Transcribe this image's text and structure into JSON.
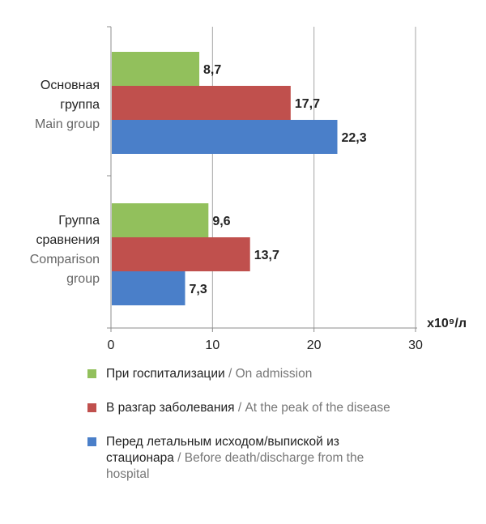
{
  "chart_data": {
    "type": "bar",
    "orientation": "horizontal",
    "categories": [
      {
        "label_ru": "Основная группа",
        "label_ru_lines": [
          "Основная",
          "группа"
        ],
        "label_en": "Main group",
        "label_en_lines": [
          "Main group"
        ]
      },
      {
        "label_ru": "Группа сравнения",
        "label_ru_lines": [
          "Группа",
          "сравнения"
        ],
        "label_en": "Comparison group",
        "label_en_lines": [
          "Comparison",
          "group"
        ]
      }
    ],
    "series": [
      {
        "name_ru": "При госпитализации",
        "name_en": "On admission",
        "color": "#92c05c",
        "values": [
          8.7,
          9.6
        ],
        "value_labels": [
          "8,7",
          "9,6"
        ]
      },
      {
        "name_ru": "В разгар заболевания",
        "name_en": "At the peak of the disease",
        "color": "#c0504d",
        "values": [
          17.7,
          13.7
        ],
        "value_labels": [
          "17,7",
          "13,7"
        ]
      },
      {
        "name_ru": "Перед летальным исходом/выпиской из стационара",
        "name_en": "Before death/discharge from the hospital",
        "color": "#4a7fc9",
        "values": [
          22.3,
          7.3
        ],
        "value_labels": [
          "22,3",
          "7,3"
        ]
      }
    ],
    "x_ticks": [
      0,
      10,
      20,
      30
    ],
    "xlim": [
      0,
      30
    ],
    "x_unit": "x10⁹/л",
    "grid": true
  },
  "legend": [
    {
      "ru": "При госпитализации",
      "sep": " / ",
      "en": "On admission",
      "color": "#92c05c"
    },
    {
      "ru": "В разгар заболевания",
      "sep": " / ",
      "en": "At the peak of the disease",
      "color": "#c0504d"
    },
    {
      "ru": "Перед летальным исходом/выпиской из стационара",
      "sep": " / ",
      "en": "Before death/discharge from the hospital",
      "color": "#4a7fc9"
    }
  ]
}
